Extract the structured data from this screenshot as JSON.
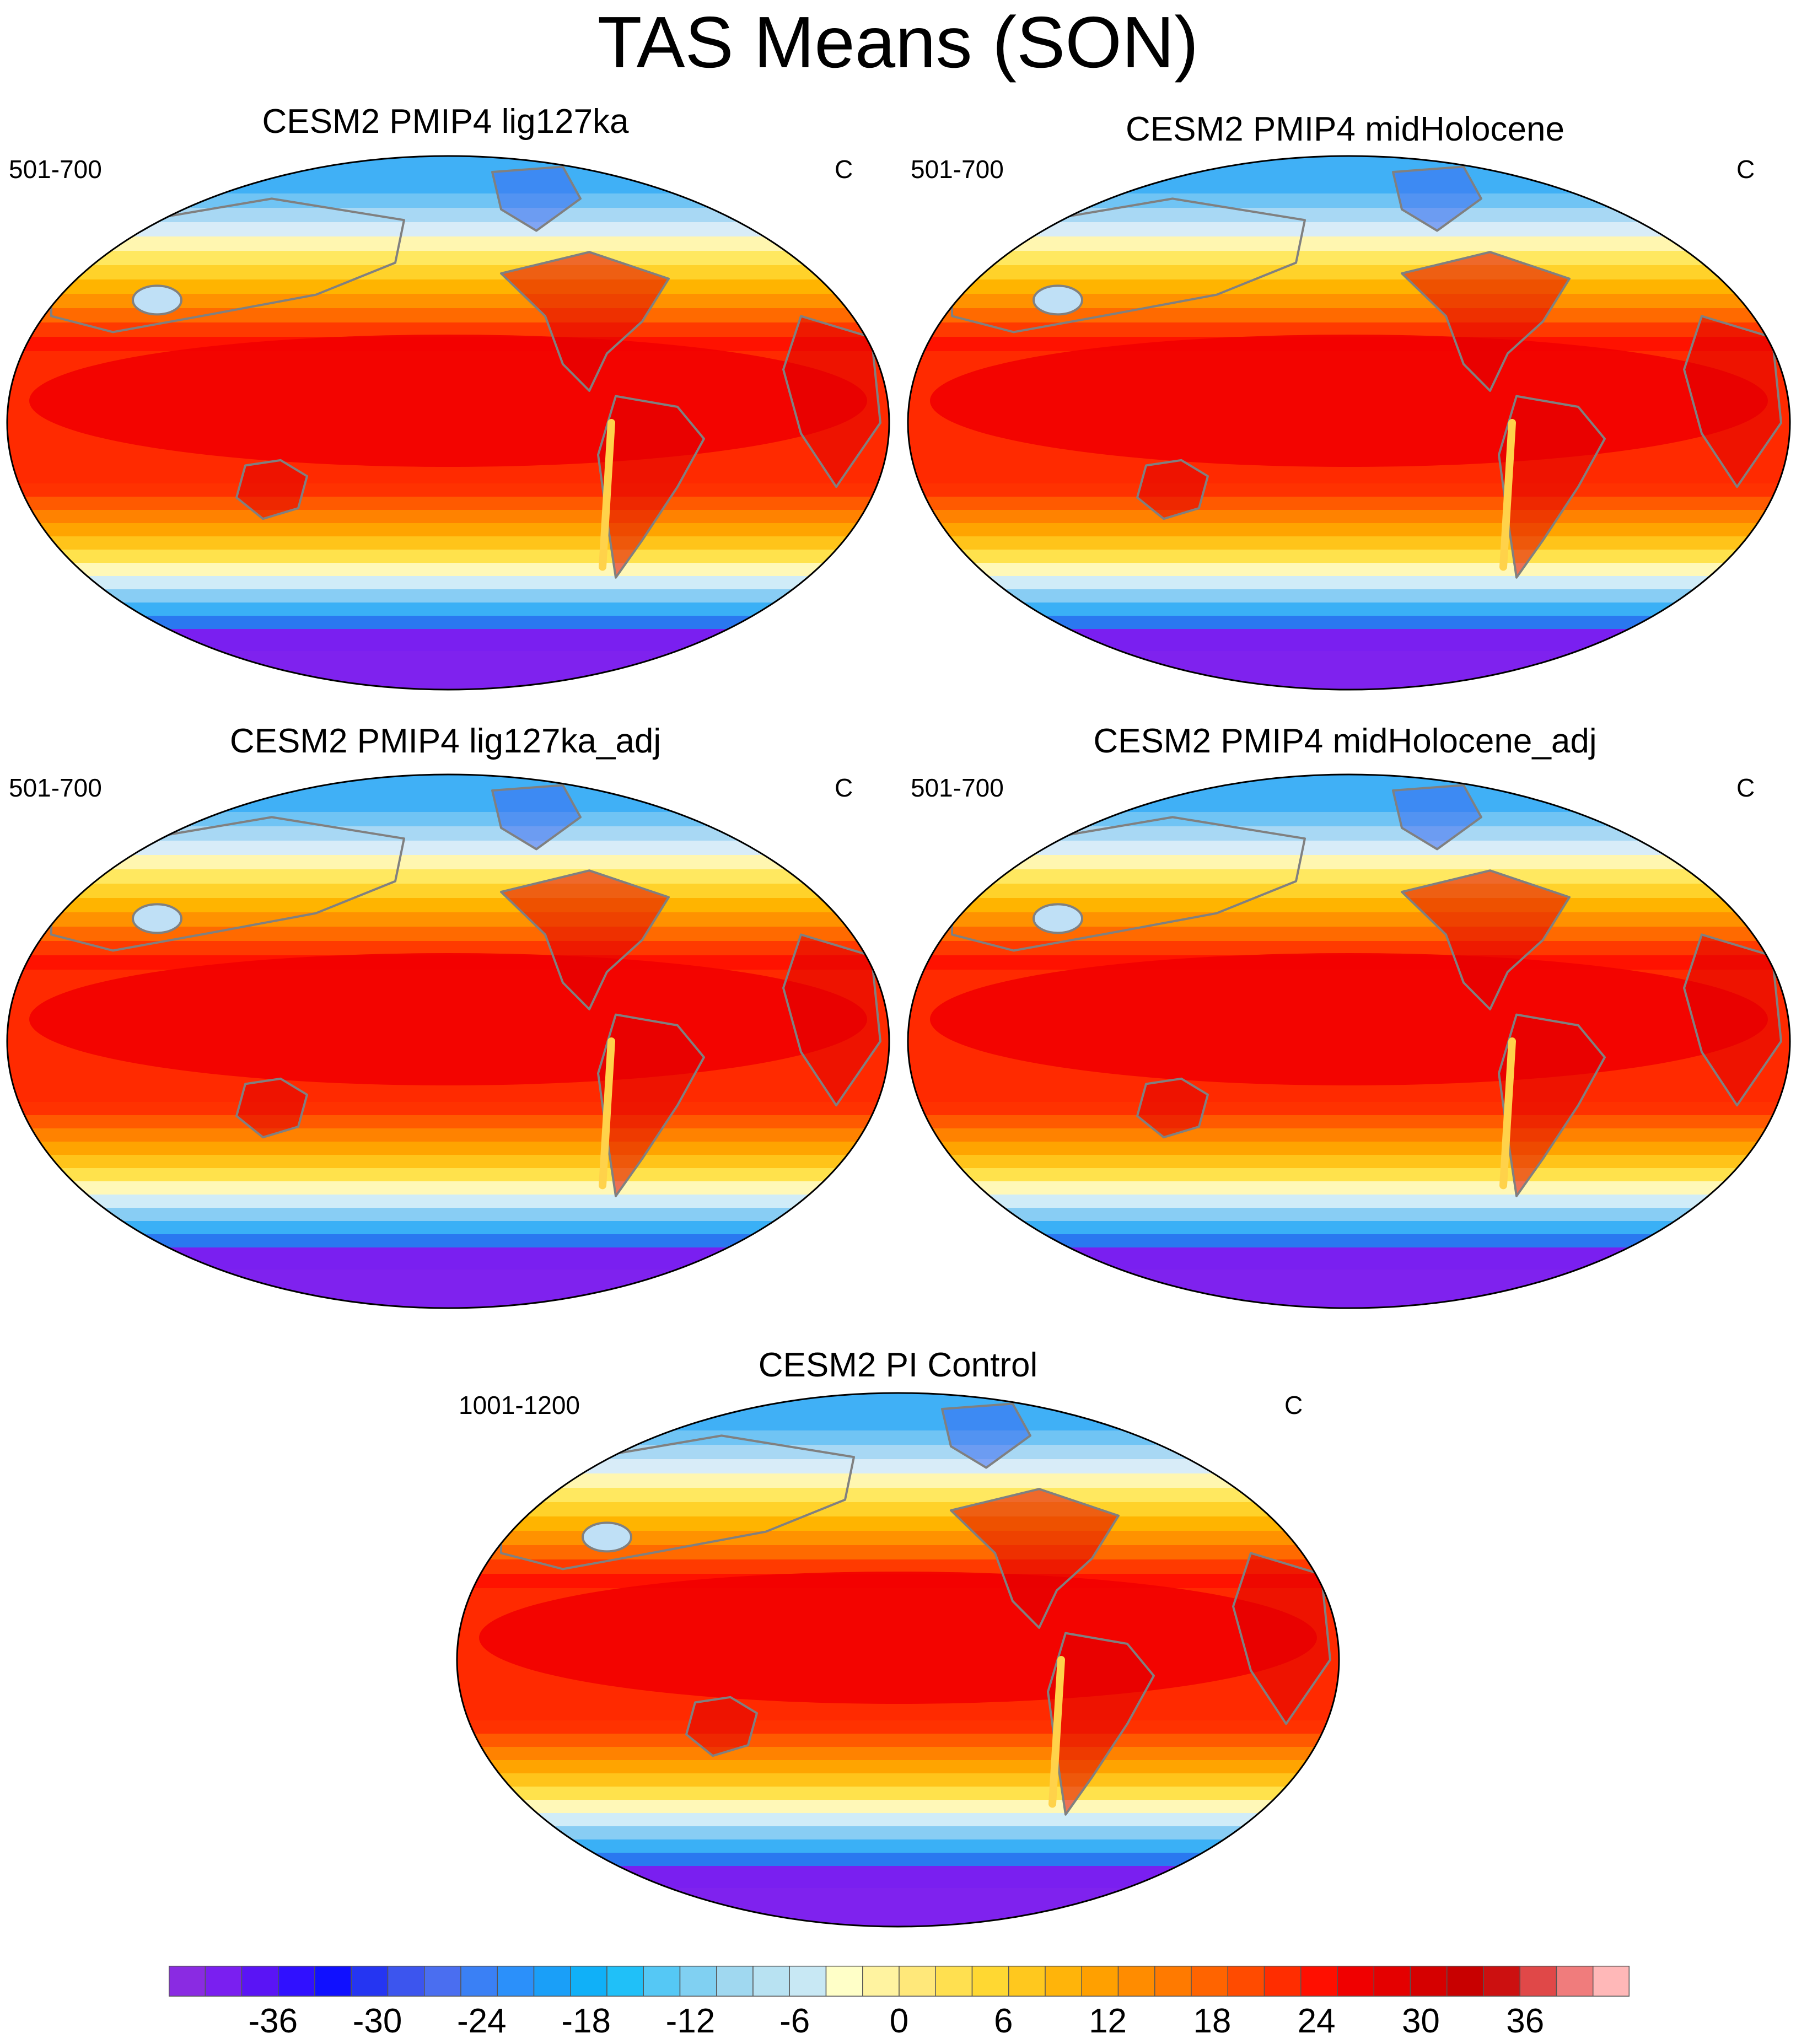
{
  "title": "TAS Means (SON)",
  "units": "C",
  "colors": {
    "ocean_band": [
      "#ffb0b0",
      "#f08080",
      "#e04848",
      "#d21018",
      "#c80000",
      "#e00000",
      "#f00000",
      "#ff1e1e",
      "#ff3c00",
      "#ff5a00",
      "#ff7a00",
      "#ff9900",
      "#ffb000",
      "#ffc61a",
      "#ffe04a",
      "#fff4a0",
      "#f6ffd8"
    ],
    "coastline": "#808080",
    "frame": "#000000"
  },
  "panels": [
    {
      "name": "lig127ka",
      "title": "CESM2 PMIP4 lig127ka",
      "years": "501-700",
      "units": "C"
    },
    {
      "name": "midHolocene",
      "title": "CESM2 PMIP4 midHolocene",
      "years": "501-700",
      "units": "C"
    },
    {
      "name": "lig127ka_adj",
      "title": "CESM2 PMIP4 lig127ka_adj",
      "years": "501-700",
      "units": "C"
    },
    {
      "name": "midHolocene_adj",
      "title": "CESM2 PMIP4 midHolocene_adj",
      "years": "501-700",
      "units": "C"
    },
    {
      "name": "pi_control",
      "title": "CESM2 PI Control",
      "years": "1001-1200",
      "units": "C"
    }
  ],
  "colorbar": {
    "min": -42,
    "max": 42,
    "step": 2,
    "colors": [
      "#8a2be2",
      "#7a1ff0",
      "#5a14f5",
      "#3010ff",
      "#1010ff",
      "#2535f2",
      "#3c55ee",
      "#4a6ef0",
      "#3a80f5",
      "#2b90fa",
      "#1a9ff8",
      "#10b0f8",
      "#20c0f8",
      "#55c8f5",
      "#80d0f2",
      "#a0d8f0",
      "#b8e2f2",
      "#c8e8f4",
      "#ffffc8",
      "#fff3a0",
      "#ffe87a",
      "#ffe050",
      "#ffd832",
      "#ffc81e",
      "#ffb40a",
      "#ffa000",
      "#ff8c00",
      "#ff7a00",
      "#ff6400",
      "#ff4b00",
      "#ff2d00",
      "#ff0f00",
      "#f00000",
      "#e40000",
      "#d50000",
      "#c80000",
      "#cc1010",
      "#e04848",
      "#f07c7c",
      "#ffb8b8"
    ],
    "tick_labels": [
      "-36",
      "-30",
      "-24",
      "-18",
      "-12",
      "-6",
      "0",
      "6",
      "12",
      "18",
      "24",
      "30",
      "36"
    ]
  }
}
